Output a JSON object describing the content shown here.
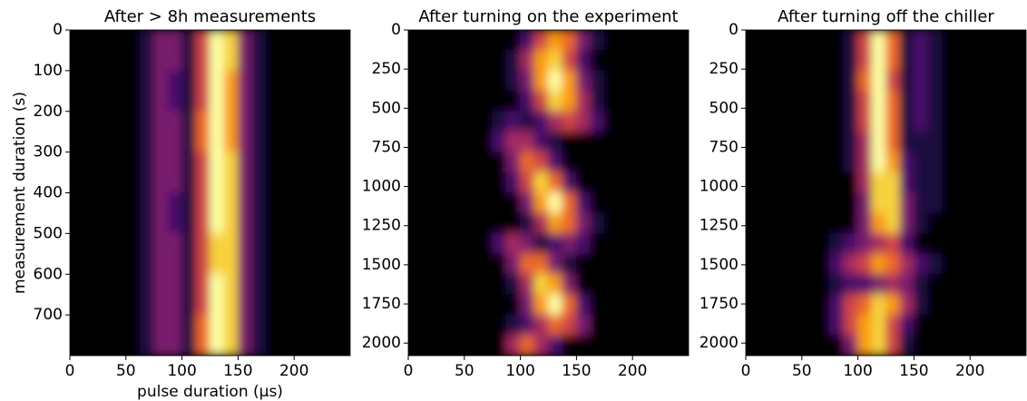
{
  "chart_data": [
    {
      "type": "heatmap",
      "title": "After > 8h measurements",
      "xlabel": "pulse duration (μs)",
      "ylabel": "measurement duration (s)",
      "colormap": "inferno",
      "zlim": [
        0,
        9
      ],
      "xlim": [
        0,
        250
      ],
      "ylim": [
        0,
        800
      ],
      "y_inverted": true,
      "xticks": [
        0,
        50,
        100,
        150,
        200
      ],
      "yticks": [
        0,
        100,
        200,
        300,
        400,
        500,
        600,
        700
      ],
      "z": [
        [
          0,
          0,
          0,
          0,
          0,
          1,
          3,
          3,
          1,
          5,
          9,
          8,
          3,
          1,
          0,
          0,
          0,
          0,
          0,
          0
        ],
        [
          0,
          0,
          0,
          0,
          0,
          1,
          3,
          2,
          1,
          5,
          9,
          7,
          3,
          1,
          0,
          0,
          0,
          0,
          0,
          0
        ],
        [
          0,
          0,
          0,
          0,
          0,
          1,
          3,
          3,
          1,
          6,
          9,
          7,
          3,
          1,
          0,
          0,
          0,
          0,
          0,
          0
        ],
        [
          0,
          0,
          0,
          0,
          0,
          1,
          3,
          3,
          1,
          5,
          9,
          8,
          3,
          1,
          0,
          0,
          0,
          0,
          0,
          0
        ],
        [
          0,
          0,
          0,
          0,
          0,
          1,
          3,
          2,
          1,
          5,
          9,
          8,
          3,
          1,
          0,
          0,
          0,
          0,
          0,
          0
        ],
        [
          0,
          0,
          0,
          0,
          0,
          1,
          3,
          3,
          1,
          5,
          8,
          8,
          3,
          1,
          0,
          0,
          0,
          0,
          0,
          0
        ],
        [
          0,
          0,
          0,
          0,
          0,
          1,
          3,
          3,
          1,
          5,
          9,
          8,
          3,
          1,
          0,
          0,
          0,
          0,
          0,
          0
        ],
        [
          0,
          0,
          0,
          0,
          0,
          1,
          3,
          3,
          1,
          6,
          9,
          8,
          3,
          1,
          0,
          0,
          0,
          0,
          0,
          0
        ]
      ]
    },
    {
      "type": "heatmap",
      "title": "After turning on the experiment",
      "colormap": "inferno",
      "zlim": [
        0,
        9
      ],
      "xlim": [
        0,
        250
      ],
      "ylim": [
        0,
        2080
      ],
      "y_inverted": true,
      "xticks": [
        0,
        50,
        100,
        150,
        200
      ],
      "yticks": [
        0,
        250,
        500,
        750,
        1000,
        1250,
        1500,
        1750,
        2000
      ],
      "z": [
        [
          0,
          0,
          0,
          0,
          0,
          0,
          0,
          0,
          2,
          5,
          7,
          6,
          3,
          1,
          0,
          0,
          0,
          0,
          0,
          0
        ],
        [
          0,
          0,
          0,
          0,
          0,
          0,
          0,
          1,
          4,
          7,
          8,
          5,
          2,
          0,
          0,
          0,
          0,
          0,
          0,
          0
        ],
        [
          0,
          0,
          0,
          0,
          0,
          0,
          0,
          1,
          3,
          7,
          9,
          7,
          3,
          1,
          0,
          0,
          0,
          0,
          0,
          0
        ],
        [
          0,
          0,
          0,
          0,
          0,
          0,
          0,
          0,
          2,
          5,
          8,
          7,
          4,
          1,
          0,
          0,
          0,
          0,
          0,
          0
        ],
        [
          0,
          0,
          0,
          0,
          0,
          0,
          1,
          2,
          1,
          2,
          4,
          5,
          4,
          2,
          0,
          0,
          0,
          0,
          0,
          0
        ],
        [
          0,
          0,
          0,
          0,
          0,
          0,
          2,
          4,
          4,
          2,
          1,
          0,
          0,
          0,
          0,
          0,
          0,
          0,
          0,
          0
        ],
        [
          0,
          0,
          0,
          0,
          0,
          0,
          0,
          3,
          6,
          5,
          2,
          0,
          0,
          0,
          0,
          0,
          0,
          0,
          0,
          0
        ],
        [
          0,
          0,
          0,
          0,
          0,
          0,
          0,
          2,
          5,
          8,
          6,
          2,
          0,
          0,
          0,
          0,
          0,
          0,
          0,
          0
        ],
        [
          0,
          0,
          0,
          0,
          0,
          0,
          0,
          0,
          3,
          7,
          9,
          6,
          2,
          0,
          0,
          0,
          0,
          0,
          0,
          0
        ],
        [
          0,
          0,
          0,
          0,
          0,
          0,
          0,
          0,
          1,
          4,
          7,
          6,
          3,
          1,
          0,
          0,
          0,
          0,
          0,
          0
        ],
        [
          0,
          0,
          0,
          0,
          0,
          0,
          2,
          4,
          3,
          1,
          2,
          3,
          2,
          0,
          0,
          0,
          0,
          0,
          0,
          0
        ],
        [
          0,
          0,
          0,
          0,
          0,
          0,
          0,
          3,
          6,
          6,
          3,
          1,
          0,
          0,
          0,
          0,
          0,
          0,
          0,
          0
        ],
        [
          0,
          0,
          0,
          0,
          0,
          0,
          0,
          1,
          4,
          8,
          7,
          3,
          0,
          0,
          0,
          0,
          0,
          0,
          0,
          0
        ],
        [
          0,
          0,
          0,
          0,
          0,
          0,
          0,
          0,
          3,
          7,
          9,
          6,
          2,
          0,
          0,
          0,
          0,
          0,
          0,
          0
        ],
        [
          0,
          0,
          0,
          0,
          0,
          0,
          0,
          1,
          2,
          4,
          6,
          5,
          3,
          0,
          0,
          0,
          0,
          0,
          0,
          0
        ],
        [
          0,
          0,
          0,
          0,
          0,
          0,
          0,
          4,
          6,
          4,
          2,
          0,
          0,
          0,
          0,
          0,
          0,
          0,
          0,
          0
        ]
      ]
    },
    {
      "type": "heatmap",
      "title": "After turning off the chiller",
      "colormap": "inferno",
      "zlim": [
        0,
        9
      ],
      "xlim": [
        0,
        250
      ],
      "ylim": [
        0,
        2080
      ],
      "y_inverted": true,
      "xticks": [
        0,
        50,
        100,
        150,
        200
      ],
      "yticks": [
        0,
        250,
        500,
        750,
        1000,
        1250,
        1500,
        1750,
        2000
      ],
      "z": [
        [
          0,
          0,
          0,
          0,
          0,
          0,
          0,
          1,
          5,
          9,
          6,
          1,
          2,
          1,
          0,
          0,
          0,
          0,
          0,
          0
        ],
        [
          0,
          0,
          0,
          0,
          0,
          0,
          0,
          1,
          5,
          9,
          6,
          1,
          2,
          1,
          0,
          0,
          0,
          0,
          0,
          0
        ],
        [
          0,
          0,
          0,
          0,
          0,
          0,
          0,
          1,
          6,
          9,
          5,
          1,
          2,
          1,
          0,
          0,
          0,
          0,
          0,
          0
        ],
        [
          0,
          0,
          0,
          0,
          0,
          0,
          0,
          1,
          5,
          9,
          6,
          1,
          2,
          1,
          0,
          0,
          0,
          0,
          0,
          0
        ],
        [
          0,
          0,
          0,
          0,
          0,
          0,
          0,
          1,
          5,
          9,
          6,
          1,
          2,
          1,
          0,
          0,
          0,
          0,
          0,
          0
        ],
        [
          0,
          0,
          0,
          0,
          0,
          0,
          0,
          1,
          4,
          9,
          6,
          1,
          1,
          1,
          0,
          0,
          0,
          0,
          0,
          0
        ],
        [
          0,
          0,
          0,
          0,
          0,
          0,
          0,
          1,
          4,
          9,
          7,
          2,
          1,
          1,
          0,
          0,
          0,
          0,
          0,
          0
        ],
        [
          0,
          0,
          0,
          0,
          0,
          0,
          0,
          0,
          4,
          8,
          8,
          2,
          1,
          1,
          0,
          0,
          0,
          0,
          0,
          0
        ],
        [
          0,
          0,
          0,
          0,
          0,
          0,
          0,
          0,
          3,
          8,
          8,
          3,
          1,
          1,
          0,
          0,
          0,
          0,
          0,
          0
        ],
        [
          0,
          0,
          0,
          0,
          0,
          0,
          0,
          0,
          3,
          7,
          8,
          3,
          1,
          0,
          0,
          0,
          0,
          0,
          0,
          0
        ],
        [
          0,
          0,
          0,
          0,
          0,
          0,
          1,
          2,
          3,
          4,
          5,
          2,
          0,
          0,
          0,
          0,
          0,
          0,
          0,
          0
        ],
        [
          0,
          0,
          0,
          0,
          0,
          0,
          2,
          4,
          5,
          7,
          6,
          4,
          2,
          1,
          0,
          0,
          0,
          0,
          0,
          0
        ],
        [
          0,
          0,
          0,
          0,
          0,
          0,
          1,
          2,
          2,
          3,
          4,
          3,
          1,
          0,
          0,
          0,
          0,
          0,
          0,
          0
        ],
        [
          0,
          0,
          0,
          0,
          0,
          0,
          2,
          5,
          6,
          8,
          7,
          4,
          1,
          0,
          0,
          0,
          0,
          0,
          0,
          0
        ],
        [
          0,
          0,
          0,
          0,
          0,
          0,
          2,
          5,
          7,
          8,
          5,
          2,
          0,
          0,
          0,
          0,
          0,
          0,
          0,
          0
        ],
        [
          0,
          0,
          0,
          0,
          0,
          0,
          0,
          3,
          7,
          8,
          5,
          1,
          0,
          0,
          0,
          0,
          0,
          0,
          0,
          0
        ]
      ]
    }
  ]
}
